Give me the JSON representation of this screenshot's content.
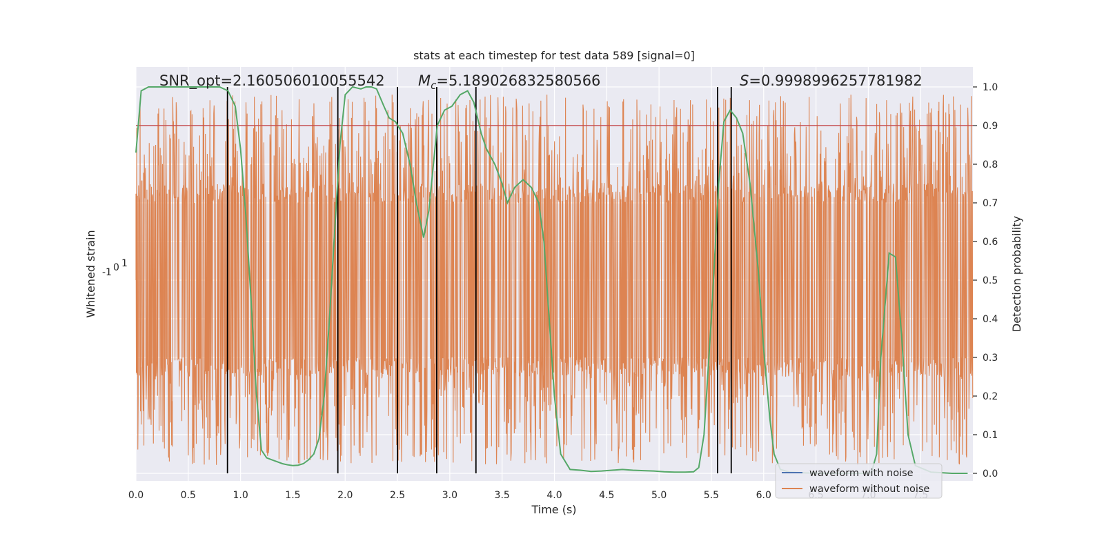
{
  "chart_data": {
    "type": "line",
    "title": "stats at each timestep for test data 589 [signal=0]",
    "xlabel": "Time (s)",
    "ylabel_left": "Whitened strain",
    "ylabel_right": "Detection probability",
    "xlim": [
      0.0,
      8.0
    ],
    "ylim_right": [
      -0.05,
      1.05
    ],
    "x_ticks": [
      "0.0",
      "0.5",
      "1.0",
      "1.5",
      "2.0",
      "2.5",
      "3.0",
      "3.5",
      "4.0",
      "4.5",
      "5.0",
      "5.5",
      "6.0",
      "6.5",
      "7.0",
      "7.5"
    ],
    "y_ticks_right": [
      "0.0",
      "0.1",
      "0.2",
      "0.3",
      "0.4",
      "0.5",
      "0.6",
      "0.7",
      "0.8",
      "0.9",
      "1.0"
    ],
    "left_axis_tick_labels": [
      "-1",
      "0",
      "1"
    ],
    "annotations": [
      {
        "id": "snr",
        "text": "SNR_opt=2.160506010055542"
      },
      {
        "id": "mc",
        "prefix": "M",
        "subscript": "c",
        "text": "=5.189026832580566"
      },
      {
        "id": "s",
        "prefix": "S",
        "text": "=0.9998996257781982"
      }
    ],
    "threshold": 0.9,
    "vertical_lines_x": [
      0.875,
      1.93,
      2.5,
      2.875,
      3.25,
      5.56,
      5.69
    ],
    "series": [
      {
        "name": "waveform with noise",
        "color": "#4c72b0",
        "axis": "left",
        "values_note": "noise-dominated whitened strain trace (hidden beneath orange series)"
      },
      {
        "name": "waveform without noise",
        "color": "#dd8452",
        "axis": "left",
        "values_note": "dense whitened strain trace spanning the plot, peaks near 0.93-0.98 and troughs near 0.00-0.10 on the right axis scale"
      },
      {
        "name": "detection probability",
        "color": "#55a868",
        "axis": "right",
        "x": [
          0.0,
          0.05,
          0.12,
          0.2,
          0.3,
          0.4,
          0.5,
          0.6,
          0.7,
          0.8,
          0.88,
          0.95,
          1.0,
          1.05,
          1.1,
          1.15,
          1.2,
          1.25,
          1.3,
          1.35,
          1.4,
          1.45,
          1.5,
          1.55,
          1.6,
          1.65,
          1.7,
          1.75,
          1.8,
          1.85,
          1.9,
          1.95,
          2.0,
          2.07,
          2.15,
          2.2,
          2.25,
          2.3,
          2.37,
          2.42,
          2.48,
          2.55,
          2.62,
          2.68,
          2.75,
          2.8,
          2.88,
          2.95,
          3.02,
          3.1,
          3.17,
          3.23,
          3.3,
          3.35,
          3.43,
          3.5,
          3.55,
          3.62,
          3.7,
          3.78,
          3.85,
          3.9,
          3.95,
          4.0,
          4.06,
          4.15,
          4.25,
          4.35,
          4.45,
          4.55,
          4.65,
          4.75,
          4.85,
          4.95,
          5.05,
          5.15,
          5.25,
          5.33,
          5.38,
          5.43,
          5.5,
          5.57,
          5.62,
          5.68,
          5.74,
          5.8,
          5.87,
          5.95,
          6.0,
          6.06,
          6.1,
          6.16,
          6.25,
          6.4,
          6.6,
          6.8,
          6.95,
          7.03,
          7.08,
          7.12,
          7.2,
          7.26,
          7.32,
          7.38,
          7.45,
          7.6,
          7.8,
          7.95
        ],
        "y": [
          0.83,
          0.99,
          1.0,
          1.0,
          1.0,
          1.0,
          1.0,
          1.0,
          1.0,
          1.0,
          0.99,
          0.95,
          0.84,
          0.67,
          0.45,
          0.21,
          0.06,
          0.04,
          0.035,
          0.03,
          0.025,
          0.022,
          0.02,
          0.021,
          0.025,
          0.035,
          0.05,
          0.09,
          0.2,
          0.4,
          0.63,
          0.85,
          0.98,
          1.0,
          0.995,
          1.0,
          1.0,
          0.995,
          0.95,
          0.92,
          0.91,
          0.88,
          0.8,
          0.7,
          0.61,
          0.68,
          0.9,
          0.94,
          0.95,
          0.98,
          0.99,
          0.96,
          0.88,
          0.84,
          0.8,
          0.75,
          0.7,
          0.74,
          0.76,
          0.74,
          0.7,
          0.6,
          0.4,
          0.2,
          0.05,
          0.01,
          0.008,
          0.005,
          0.006,
          0.008,
          0.01,
          0.008,
          0.007,
          0.006,
          0.004,
          0.003,
          0.003,
          0.004,
          0.015,
          0.1,
          0.4,
          0.75,
          0.91,
          0.94,
          0.92,
          0.88,
          0.75,
          0.52,
          0.32,
          0.14,
          0.05,
          0.01,
          0.003,
          0.001,
          0.0,
          0.0,
          0.0,
          0.002,
          0.05,
          0.3,
          0.57,
          0.56,
          0.35,
          0.1,
          0.02,
          0.003,
          0.0,
          0.0
        ]
      }
    ],
    "legend": {
      "position": "bottom-right",
      "entries": [
        "waveform with noise",
        "waveform without noise"
      ]
    },
    "grid": true,
    "colors": {
      "background": "#eaeaf2",
      "grid": "#ffffff",
      "noise_line": "#4c72b0",
      "waveform": "#dd8452",
      "probability": "#55a868",
      "threshold": "#c44e52",
      "vline": "#000000"
    }
  }
}
